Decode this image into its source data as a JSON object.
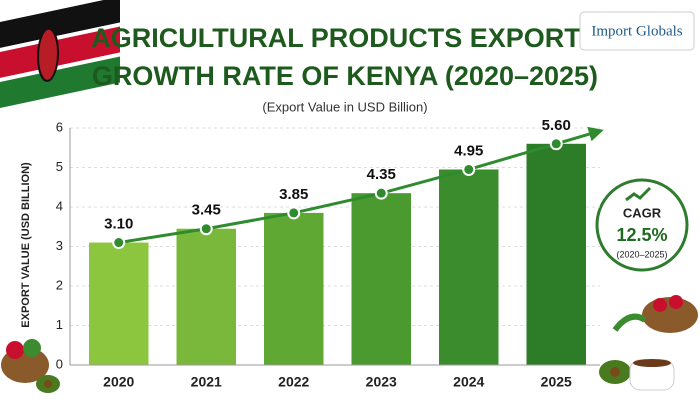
{
  "chart_data": {
    "type": "bar",
    "title_lines": [
      "AGRICULTURAL PRODUCTS EXPORTS",
      "GROWTH RATE OF KENYA (2020–2025)"
    ],
    "subtitle": "(Export Value in USD Billion)",
    "y_label": "EXPORT VALUE (USD BILLION)",
    "categories": [
      "2020",
      "2021",
      "2022",
      "2023",
      "2024",
      "2025"
    ],
    "values": [
      3.1,
      3.45,
      3.85,
      4.35,
      4.95,
      5.6
    ],
    "value_labels": [
      "3.10",
      "3.45",
      "3.85",
      "4.35",
      "4.95",
      "5.60"
    ],
    "colors": [
      "#8cc63f",
      "#79b83a",
      "#5fa834",
      "#4a9a30",
      "#3a8c2c",
      "#2d7d28"
    ],
    "line_color": "#2e8b2e",
    "ylim": [
      0,
      6
    ],
    "yticks": [
      0,
      1,
      2,
      3,
      4,
      5,
      6
    ],
    "grid": true
  },
  "logo": "Import Globals",
  "cagr": {
    "label": "CAGR",
    "value": "12.5%",
    "period": "(2020–2025)"
  }
}
